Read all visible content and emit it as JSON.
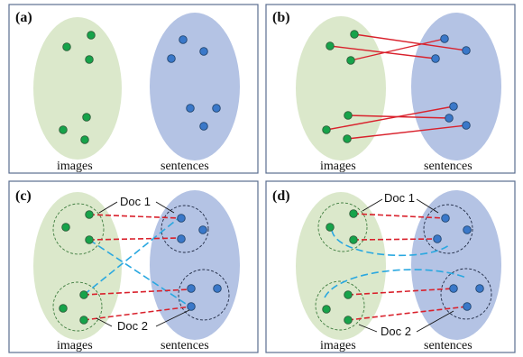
{
  "panels": [
    {
      "label": "(a)",
      "images_caption": "images",
      "sentences_caption": "sentences"
    },
    {
      "label": "(b)",
      "images_caption": "images",
      "sentences_caption": "sentences"
    },
    {
      "label": "(c)",
      "images_caption": "images",
      "sentences_caption": "sentences",
      "doc1_label": "Doc 1",
      "doc2_label": "Doc 2"
    },
    {
      "label": "(d)",
      "images_caption": "images",
      "sentences_caption": "sentences",
      "doc1_label": "Doc 1",
      "doc2_label": "Doc 2"
    }
  ],
  "colors": {
    "image_node": "#16a34a",
    "sentence_node": "#3a78c9",
    "image_region": "#dbe8cb",
    "sentence_region": "#b4c3e4",
    "match_line": "#d9212c",
    "cross_doc_line": "#2aa8e0"
  }
}
